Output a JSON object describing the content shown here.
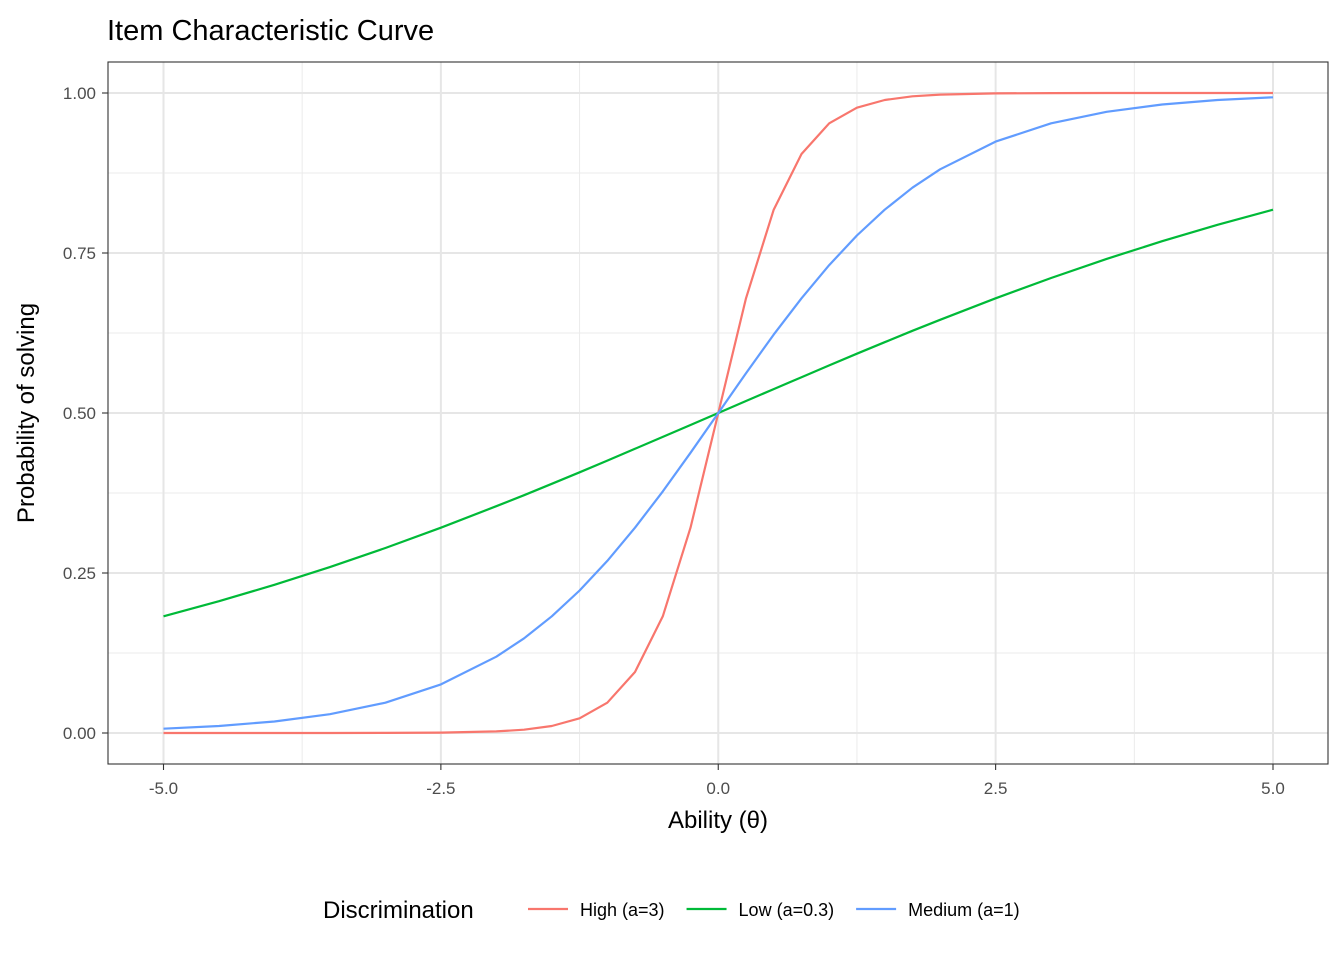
{
  "chart_data": {
    "type": "line",
    "title": "Item Characteristic Curve",
    "xlabel": "Ability (θ)",
    "ylabel": "Probability of solving",
    "xlim": [
      -5,
      5
    ],
    "ylim": [
      0,
      1
    ],
    "x_ticks": [
      -5,
      -2.5,
      0,
      2.5,
      5
    ],
    "x_tick_labels": [
      "-5.0",
      "-2.5",
      "0.0",
      "2.5",
      "5.0"
    ],
    "y_ticks": [
      0,
      0.25,
      0.5,
      0.75,
      1
    ],
    "y_tick_labels": [
      "0.00",
      "0.25",
      "0.50",
      "0.75",
      "1.00"
    ],
    "grid": true,
    "legend": {
      "title": "Discrimination",
      "position": "bottom"
    },
    "x": [
      -5,
      -4.5,
      -4,
      -3.5,
      -3,
      -2.5,
      -2,
      -1.75,
      -1.5,
      -1.25,
      -1,
      -0.75,
      -0.5,
      -0.25,
      0,
      0.25,
      0.5,
      0.75,
      1,
      1.25,
      1.5,
      1.75,
      2,
      2.5,
      3,
      3.5,
      4,
      4.5,
      5
    ],
    "series": [
      {
        "name": "High (a=3)",
        "color": "#f8766d",
        "values": [
          0.0,
          0.0,
          0.0,
          0.0,
          0.0001,
          0.0006,
          0.0025,
          0.0052,
          0.011,
          0.023,
          0.0474,
          0.0953,
          0.1824,
          0.3208,
          0.5,
          0.6792,
          0.8176,
          0.9047,
          0.9526,
          0.977,
          0.989,
          0.9948,
          0.9975,
          0.9994,
          0.9999,
          1.0,
          1.0,
          1.0,
          1.0
        ]
      },
      {
        "name": "Low (a=0.3)",
        "color": "#00ba38",
        "values": [
          0.1824,
          0.2059,
          0.2315,
          0.2592,
          0.2891,
          0.3208,
          0.3543,
          0.3716,
          0.3894,
          0.4074,
          0.4256,
          0.444,
          0.4626,
          0.4813,
          0.5,
          0.5187,
          0.5374,
          0.556,
          0.5744,
          0.5926,
          0.6106,
          0.6284,
          0.6457,
          0.6792,
          0.7109,
          0.7408,
          0.7685,
          0.7941,
          0.8176
        ]
      },
      {
        "name": "Medium (a=1)",
        "color": "#619cff",
        "values": [
          0.0067,
          0.011,
          0.018,
          0.0293,
          0.0474,
          0.0759,
          0.1192,
          0.148,
          0.1824,
          0.2227,
          0.2689,
          0.3208,
          0.3775,
          0.4378,
          0.5,
          0.5622,
          0.6225,
          0.6792,
          0.7311,
          0.7773,
          0.8176,
          0.852,
          0.8808,
          0.9241,
          0.9526,
          0.9707,
          0.982,
          0.989,
          0.9933
        ]
      }
    ]
  }
}
